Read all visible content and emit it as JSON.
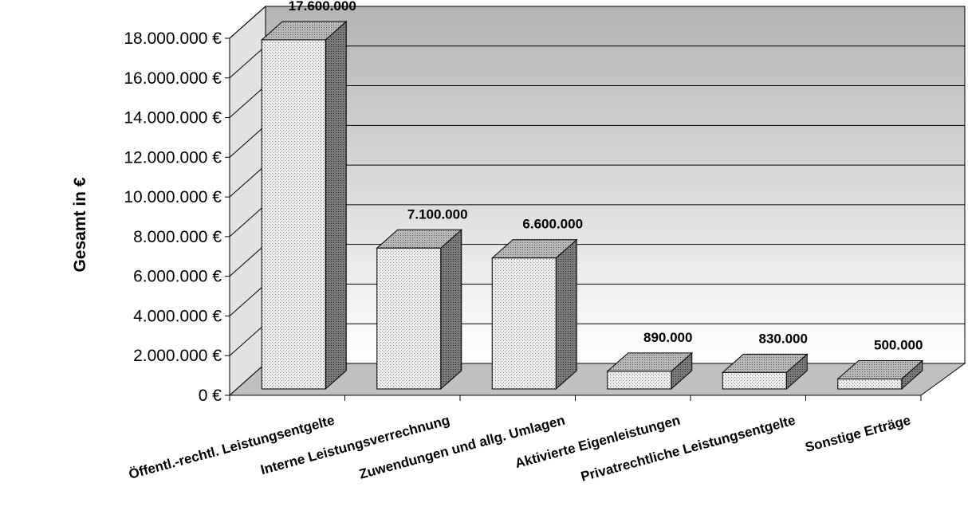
{
  "chart_data": {
    "type": "bar",
    "title": "",
    "xlabel": "",
    "ylabel": "Gesamt in €",
    "ylim": [
      0,
      18000000
    ],
    "grid": true,
    "categories": [
      "Öffentl.-rechtl. Leistungsentgelte",
      "Interne Leistungsverrechnung",
      "Zuwendungen und allg. Umlagen",
      "Aktivierte Eigenleistungen",
      "Privatrechtliche Leistungsentgelte",
      "Sonstige Erträge"
    ],
    "values": [
      17600000,
      7100000,
      6600000,
      890000,
      830000,
      500000
    ],
    "data_labels": [
      "17.600.000",
      "7.100.000",
      "6.600.000",
      "890.000",
      "830.000",
      "500.000"
    ],
    "y_ticks": [
      0,
      2000000,
      4000000,
      6000000,
      8000000,
      10000000,
      12000000,
      14000000,
      16000000,
      18000000
    ],
    "y_tick_labels": [
      "0 €",
      "2.000.000 €",
      "4.000.000 €",
      "6.000.000 €",
      "8.000.000 €",
      "10.000.000 €",
      "12.000.000 €",
      "14.000.000 €",
      "16.000.000 €",
      "18.000.000 €"
    ]
  }
}
